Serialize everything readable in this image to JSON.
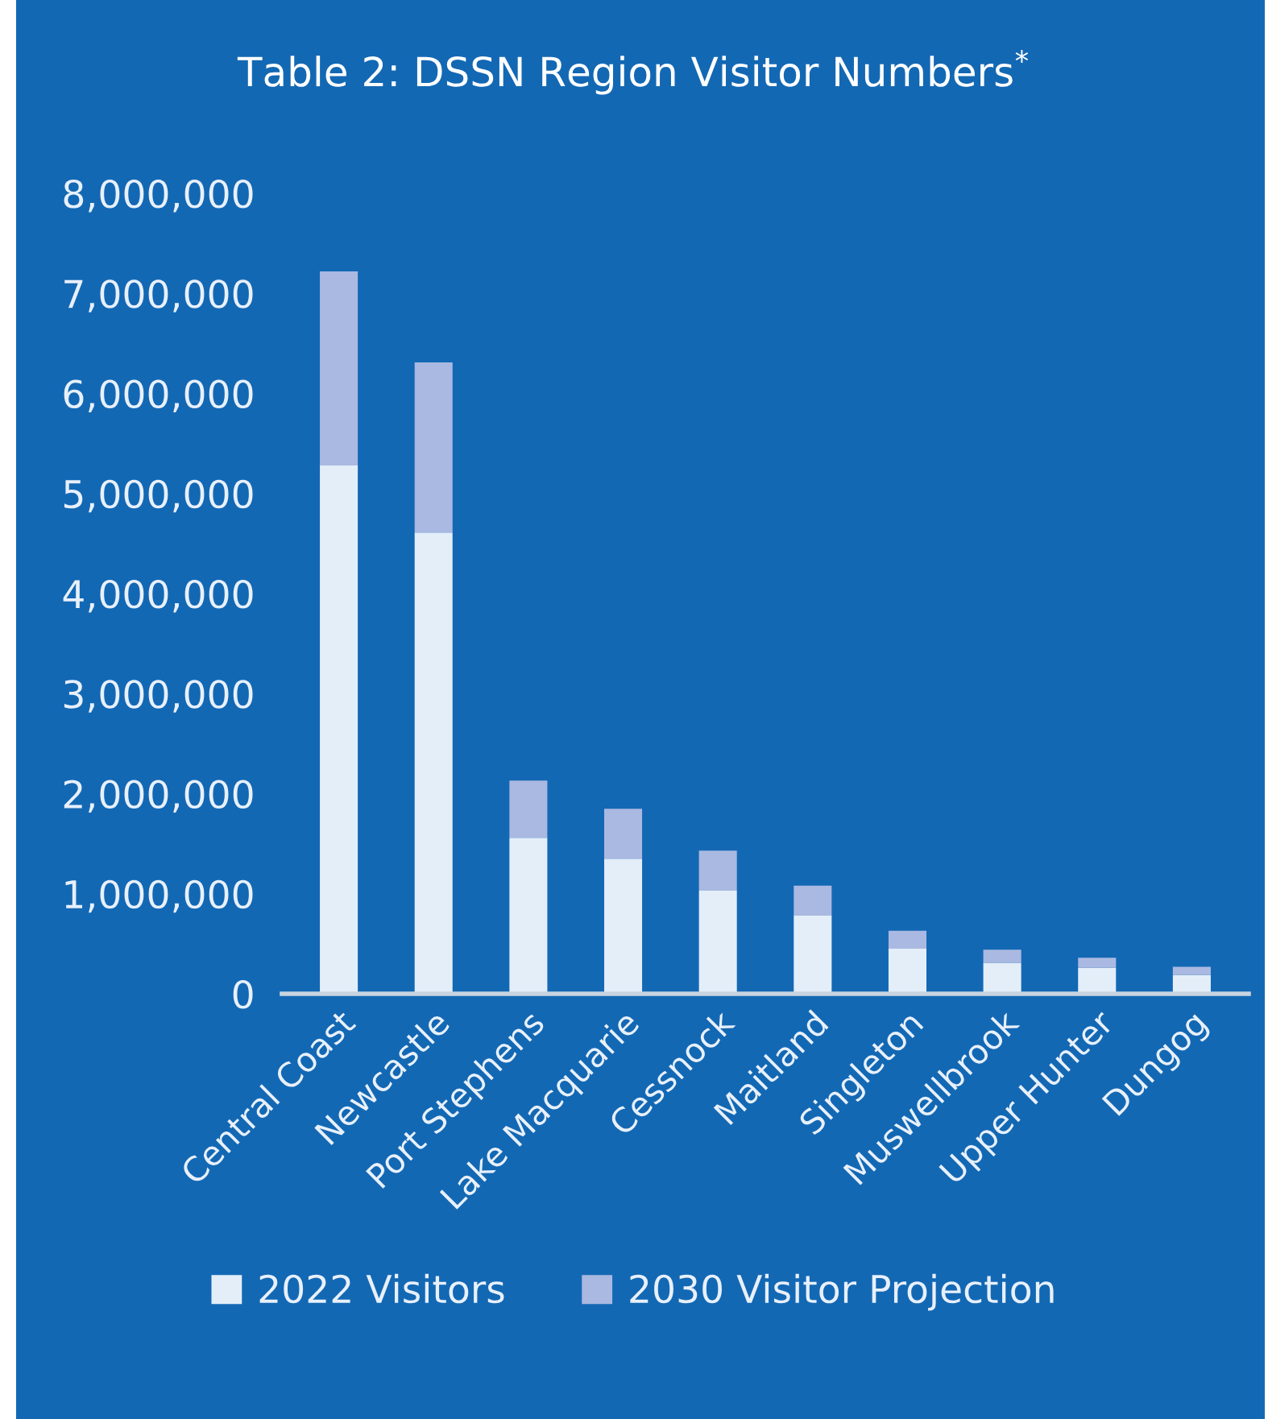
{
  "chart_data": {
    "type": "bar",
    "title": "Table 2: DSSN Region Visitor Numbers$^{*}$",
    "stacked": true,
    "legend": "bottom",
    "grid": false,
    "categories": [
      "Central Coast",
      "Newcastle",
      "Port Stephens",
      "Lake Macquarie",
      "Cessnock",
      "Maitland",
      "Singleton",
      "Muswellbrook",
      "Upper Hunter",
      "Dungog"
    ],
    "series": [
      {
        "name": "2022 Visitors",
        "color": "#e3eef9",
        "values": [
          5280000,
          4610000,
          1560000,
          1350000,
          1030000,
          780000,
          450000,
          310000,
          260000,
          190000
        ]
      },
      {
        "name": "2030 Visitor Projection",
        "color": "#aab9e1",
        "values": [
          1940000,
          1700000,
          570000,
          500000,
          400000,
          300000,
          180000,
          130000,
          100000,
          80000
        ]
      }
    ],
    "ylim": [
      0,
      8000000
    ],
    "yticks": [
      {
        "value": 0,
        "label": "0"
      },
      {
        "value": 1000000,
        "label": "1,000,000"
      },
      {
        "value": 2000000,
        "label": "2,000,000"
      },
      {
        "value": 3000000,
        "label": "3,000,000"
      },
      {
        "value": 4000000,
        "label": "4,000,000"
      },
      {
        "value": 5000000,
        "label": "5,000,000"
      },
      {
        "value": 6000000,
        "label": "6,000,000"
      },
      {
        "value": 7000000,
        "label": "7,000,000"
      },
      {
        "value": 8000000,
        "label": "8,000,000"
      }
    ]
  }
}
